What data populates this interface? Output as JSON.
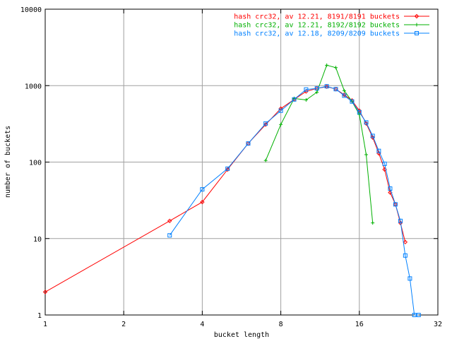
{
  "chart_data": {
    "type": "line",
    "xlabel": "bucket length",
    "ylabel": "number of buckets",
    "xscale": "log2",
    "yscale": "log10",
    "xlim": [
      1,
      32
    ],
    "ylim": [
      1,
      10000
    ],
    "x_ticks": [
      1,
      2,
      4,
      8,
      16,
      32
    ],
    "y_ticks": [
      1,
      10,
      100,
      1000,
      10000
    ],
    "grid": true,
    "legend_position": "top-right",
    "series": [
      {
        "name": "hash crc32, av 12.21, 8191/8191 buckets",
        "color": "#ff0000",
        "marker": "diamond",
        "points": [
          [
            1,
            2
          ],
          [
            3,
            17
          ],
          [
            4,
            30
          ],
          [
            5,
            80
          ],
          [
            6,
            175
          ],
          [
            7,
            310
          ],
          [
            8,
            500
          ],
          [
            9,
            660
          ],
          [
            10,
            840
          ],
          [
            11,
            920
          ],
          [
            12,
            970
          ],
          [
            13,
            900
          ],
          [
            14,
            760
          ],
          [
            15,
            640
          ],
          [
            16,
            470
          ],
          [
            17,
            320
          ],
          [
            18,
            210
          ],
          [
            19,
            130
          ],
          [
            20,
            80
          ],
          [
            21,
            40
          ],
          [
            22,
            28
          ],
          [
            23,
            16
          ],
          [
            24,
            9
          ]
        ]
      },
      {
        "name": "hash crc32, av 12.21, 8192/8192 buckets",
        "color": "#00b000",
        "marker": "plus",
        "points": [
          [
            7,
            105
          ],
          [
            8,
            310
          ],
          [
            9,
            680
          ],
          [
            10,
            650
          ],
          [
            11,
            820
          ],
          [
            12,
            1850
          ],
          [
            13,
            1720
          ],
          [
            14,
            860
          ],
          [
            15,
            620
          ],
          [
            16,
            420
          ],
          [
            17,
            125
          ],
          [
            18,
            16
          ]
        ]
      },
      {
        "name": "hash crc32, av 12.18, 8209/8209 buckets",
        "color": "#0080ff",
        "marker": "square",
        "points": [
          [
            3,
            11
          ],
          [
            4,
            44
          ],
          [
            5,
            82
          ],
          [
            6,
            175
          ],
          [
            7,
            320
          ],
          [
            8,
            470
          ],
          [
            9,
            660
          ],
          [
            10,
            890
          ],
          [
            11,
            920
          ],
          [
            12,
            980
          ],
          [
            13,
            900
          ],
          [
            14,
            740
          ],
          [
            15,
            620
          ],
          [
            16,
            450
          ],
          [
            17,
            330
          ],
          [
            18,
            220
          ],
          [
            19,
            140
          ],
          [
            20,
            95
          ],
          [
            21,
            45
          ],
          [
            22,
            28
          ],
          [
            23,
            17
          ],
          [
            24,
            6
          ],
          [
            25,
            3
          ],
          [
            26,
            1
          ],
          [
            27,
            1
          ]
        ]
      }
    ]
  }
}
